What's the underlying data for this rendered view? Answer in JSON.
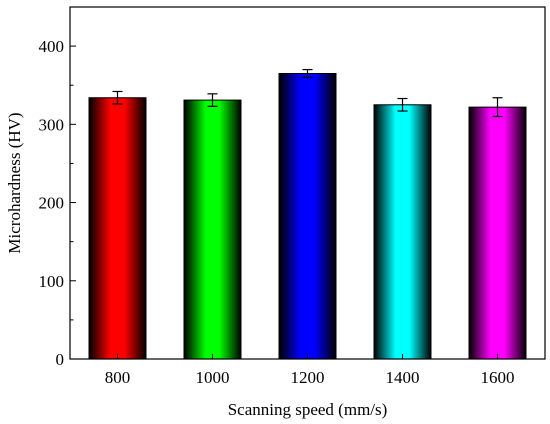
{
  "chart_data": {
    "type": "bar",
    "categories": [
      "800",
      "1000",
      "1200",
      "1400",
      "1600"
    ],
    "values": [
      334,
      331,
      365,
      325,
      322
    ],
    "errors": [
      8,
      8,
      5,
      8,
      12
    ],
    "colors": [
      "#ff0000",
      "#00ff00",
      "#0000ff",
      "#00ffff",
      "#ff00ff"
    ],
    "xlabel": "Scanning speed (mm/s)",
    "ylabel": "Microhardness (HV)",
    "ylim": [
      0,
      450
    ],
    "yticks": [
      "0",
      "100",
      "200",
      "300",
      "400"
    ],
    "grid": false,
    "legend": "none",
    "bar_style": "gradient-shaded"
  }
}
